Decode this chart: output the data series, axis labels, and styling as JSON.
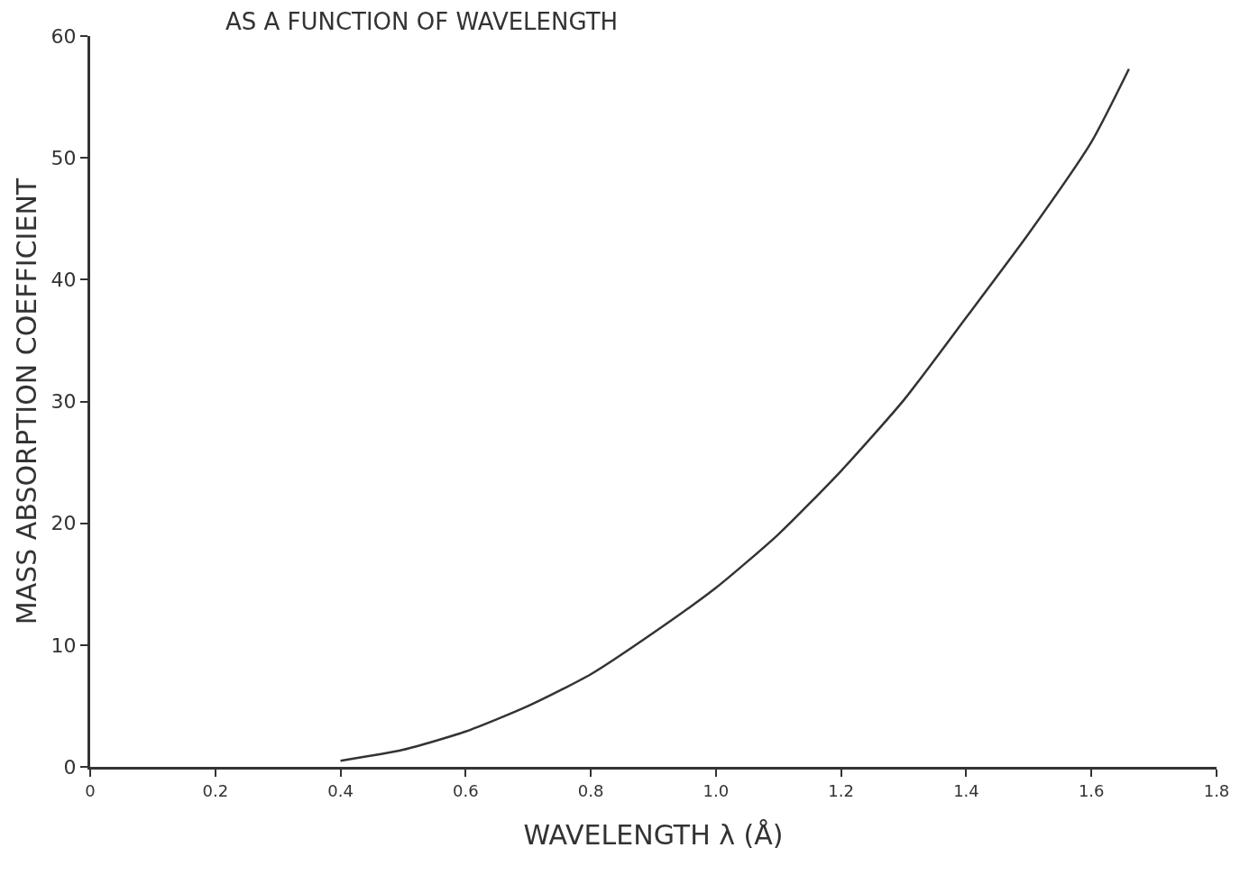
{
  "chart_data": {
    "type": "line",
    "title": "AS A FUNCTION OF WAVELENGTH",
    "xlabel": "WAVELENGTH λ (Å)",
    "ylabel": "MASS ABSORPTION COEFFICIENT",
    "x": [
      0.4,
      0.5,
      0.6,
      0.7,
      0.8,
      0.9,
      1.0,
      1.1,
      1.2,
      1.3,
      1.4,
      1.5,
      1.6,
      1.66
    ],
    "series": [
      {
        "color": "#333333",
        "values": [
          0.5,
          1.4,
          2.9,
          5.0,
          7.6,
          11.0,
          14.7,
          19.1,
          24.3,
          30.1,
          36.9,
          43.8,
          51.3,
          57.3
        ]
      }
    ],
    "xlim": [
      0,
      1.8
    ],
    "xticks": [
      0,
      0.2,
      0.4,
      0.6,
      0.8,
      {
        "value": 1.0,
        "label": "1.0"
      },
      1.2,
      1.4,
      1.6,
      1.8
    ],
    "ylim": [
      0,
      60
    ],
    "yticks": [
      0,
      10,
      20,
      30,
      40,
      50,
      60
    ],
    "grid": false,
    "marker": "none",
    "line_style": "solid"
  }
}
